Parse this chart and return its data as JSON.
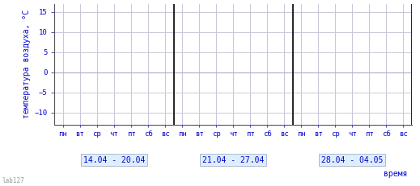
{
  "title": "",
  "ylabel": "температура воздуха, °С",
  "xlabel": "время",
  "ylim": [
    -13,
    17
  ],
  "yticks": [
    -10,
    -5,
    0,
    5,
    10,
    15
  ],
  "weeks": [
    {
      "label": "14.04 - 20.04",
      "days": [
        "пн",
        "вт",
        "ср",
        "чт",
        "пт",
        "сб",
        "вс"
      ]
    },
    {
      "label": "21.04 - 27.04",
      "days": [
        "пн",
        "вт",
        "ср",
        "чт",
        "пт",
        "сб",
        "вс"
      ]
    },
    {
      "label": "28.04 - 04.05",
      "days": [
        "пн",
        "вт",
        "ср",
        "чт",
        "пт",
        "сб",
        "вс"
      ]
    }
  ],
  "grid_color": "#c8c8d8",
  "separator_color": "#000000",
  "zero_line_color": "#aaaacc",
  "bg_color": "#ffffff",
  "text_color": "#0000cc",
  "label_box_color": "#ddeeff",
  "label_box_edge": "#aabbcc",
  "ylabel_fontsize": 7,
  "xlabel_fontsize": 7,
  "tick_fontsize": 6.5,
  "week_label_fontsize": 7,
  "watermark": "lab127"
}
